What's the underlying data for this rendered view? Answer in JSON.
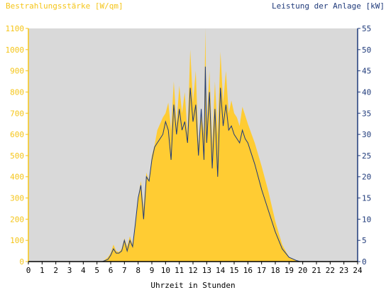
{
  "chart_data": {
    "type": "area",
    "title": "",
    "left_axis": {
      "label": "Bestrahlungsstärke [W/qm]",
      "ylim": [
        0,
        1100
      ],
      "ticks": [
        0,
        100,
        200,
        300,
        400,
        500,
        600,
        700,
        800,
        900,
        1000,
        1100
      ],
      "color": "#f5c518"
    },
    "right_axis": {
      "label": "Leistung der Anlage [kW]",
      "ylim": [
        0,
        55
      ],
      "ticks": [
        0,
        5,
        10,
        15,
        20,
        25,
        30,
        35,
        40,
        45,
        50,
        55
      ],
      "color": "#1f3a7a"
    },
    "x_axis": {
      "label": "Uhrzeit in Stunden",
      "xlim": [
        0,
        24
      ],
      "ticks": [
        0,
        1,
        2,
        3,
        4,
        5,
        6,
        7,
        8,
        9,
        10,
        11,
        12,
        13,
        14,
        15,
        16,
        17,
        18,
        19,
        20,
        21,
        22,
        23,
        24
      ]
    },
    "grid": false,
    "background": "#d9d9d9",
    "series": [
      {
        "name": "",
        "kind": "area",
        "axis": "left",
        "color": "#ffcc33",
        "x": [
          0,
          5.4,
          5.8,
          6.0,
          6.2,
          6.4,
          6.6,
          6.8,
          7.0,
          7.2,
          7.4,
          7.6,
          7.8,
          8.0,
          8.2,
          8.4,
          8.6,
          8.8,
          9.0,
          9.2,
          9.4,
          9.6,
          9.8,
          10.0,
          10.2,
          10.4,
          10.6,
          10.8,
          11.0,
          11.2,
          11.4,
          11.6,
          11.8,
          12.0,
          12.2,
          12.4,
          12.6,
          12.8,
          12.9,
          13.0,
          13.2,
          13.4,
          13.6,
          13.8,
          14.0,
          14.2,
          14.4,
          14.6,
          14.8,
          15.0,
          15.2,
          15.4,
          15.6,
          15.8,
          16.0,
          16.5,
          17.0,
          17.5,
          18.0,
          18.5,
          19.0,
          19.5,
          19.8,
          20.0,
          24
        ],
        "y": [
          0,
          0,
          20,
          40,
          80,
          50,
          45,
          60,
          110,
          70,
          120,
          80,
          180,
          300,
          380,
          250,
          420,
          380,
          500,
          550,
          620,
          650,
          680,
          700,
          750,
          620,
          850,
          650,
          830,
          700,
          800,
          600,
          1000,
          750,
          900,
          550,
          700,
          600,
          1100,
          650,
          900,
          550,
          850,
          600,
          990,
          750,
          900,
          700,
          760,
          700,
          680,
          640,
          730,
          690,
          650,
          560,
          450,
          330,
          190,
          80,
          20,
          5,
          0,
          0,
          0
        ]
      },
      {
        "name": "",
        "kind": "line",
        "axis": "right",
        "color": "#1f3a7a",
        "x": [
          0,
          5.4,
          5.8,
          6.0,
          6.2,
          6.4,
          6.6,
          6.8,
          7.0,
          7.2,
          7.4,
          7.6,
          7.8,
          8.0,
          8.2,
          8.4,
          8.6,
          8.8,
          9.0,
          9.2,
          9.4,
          9.6,
          9.8,
          10.0,
          10.2,
          10.4,
          10.6,
          10.8,
          11.0,
          11.2,
          11.4,
          11.6,
          11.8,
          12.0,
          12.2,
          12.4,
          12.6,
          12.8,
          12.9,
          13.0,
          13.2,
          13.4,
          13.6,
          13.8,
          14.0,
          14.2,
          14.4,
          14.6,
          14.8,
          15.0,
          15.2,
          15.4,
          15.6,
          15.8,
          16.0,
          16.5,
          17.0,
          17.5,
          18.0,
          18.5,
          19.0,
          19.5,
          19.8,
          20.0,
          24
        ],
        "y": [
          0,
          0,
          0.5,
          1.5,
          3,
          2,
          2,
          2.5,
          5,
          2.5,
          5,
          3.5,
          9,
          15,
          18,
          10,
          20,
          19,
          24,
          27,
          28,
          29,
          30,
          33,
          31,
          24,
          37,
          30,
          36,
          31,
          33,
          28,
          41,
          33,
          37,
          25,
          36,
          24,
          46,
          28,
          40,
          22,
          36,
          20,
          41,
          32,
          37,
          31,
          32,
          30,
          29,
          28,
          31,
          29,
          28,
          23,
          17,
          12,
          7,
          3,
          1,
          0.3,
          0,
          0,
          0
        ]
      }
    ]
  }
}
